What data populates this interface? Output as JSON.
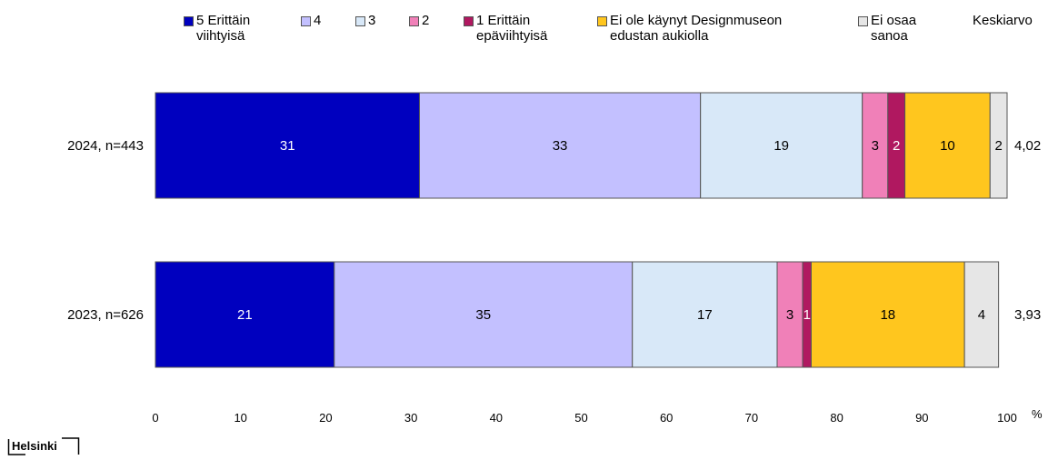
{
  "chart_data": {
    "type": "bar",
    "orientation": "horizontal",
    "stacked": true,
    "categories": [
      "2024, n=443",
      "2023, n=626"
    ],
    "series": [
      {
        "name": "5 Erittäin\nviihtyisä",
        "color": "#0000bf",
        "values": [
          31,
          21
        ]
      },
      {
        "name": "4",
        "color": "#c3c0ff",
        "values": [
          33,
          35
        ]
      },
      {
        "name": "3",
        "color": "#d8e8f8",
        "values": [
          19,
          17
        ]
      },
      {
        "name": "2",
        "color": "#f080b8",
        "values": [
          3,
          3
        ]
      },
      {
        "name": "1 Erittäin\nepäviihtyisä",
        "color": "#b01860",
        "values": [
          2,
          1
        ]
      },
      {
        "name": "Ei ole käynyt Designmuseon\nedustan aukiolla",
        "color": "#ffc61e",
        "values": [
          10,
          18
        ]
      },
      {
        "name": "Ei osaa\nsanoa",
        "color": "#e6e6e6",
        "values": [
          2,
          4
        ]
      }
    ],
    "mean_label": "Keskiarvo",
    "means": [
      "4,02",
      "3,93"
    ],
    "xticks": [
      0,
      10,
      20,
      30,
      40,
      50,
      60,
      70,
      80,
      90,
      100
    ],
    "xunit": "%",
    "xlim": [
      0,
      100
    ],
    "grid": false,
    "legend_position": "top"
  },
  "logo": {
    "text": "Helsinki"
  }
}
